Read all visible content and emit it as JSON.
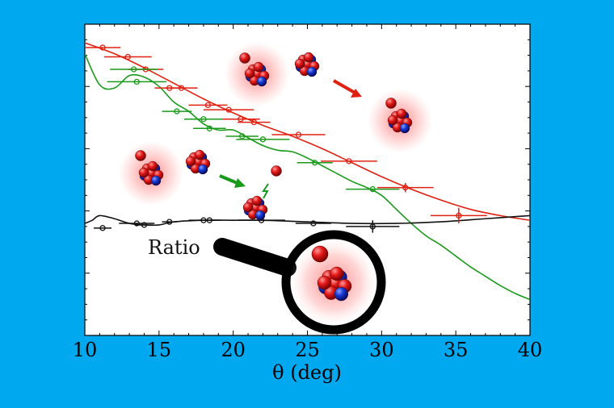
{
  "colors": {
    "background": "#00a8f0",
    "plot_bg": "#ffffff",
    "red_series": "#e02010",
    "green_series": "#1a9a1a",
    "ratio_series": "#111111",
    "proton": "#e02020",
    "neutron": "#1030c0"
  },
  "icons": [
    "nucleus-icon",
    "proton-icon",
    "magnifier-icon",
    "arrow-icon"
  ],
  "annotations": {
    "ratio_label": "Ratio"
  },
  "chart_data": {
    "type": "scatter",
    "title": "",
    "xlabel": "θ (deg)",
    "ylabel": "",
    "xlim": [
      10,
      40
    ],
    "ylim": [
      0,
      1
    ],
    "yscale": "linear (unlabeled ticks)",
    "grid": false,
    "legend": "none",
    "xticks": [
      "10",
      "15",
      "20",
      "25",
      "30",
      "35",
      "40"
    ],
    "series": [
      {
        "color": "red",
        "points": [
          {
            "x": 11.2,
            "y": 0.925,
            "xerr": 1.2
          },
          {
            "x": 12.9,
            "y": 0.895,
            "xerr": 1.6
          },
          {
            "x": 14.1,
            "y": 0.855,
            "xerr": 1.2
          },
          {
            "x": 15.7,
            "y": 0.795,
            "xerr": 1.0
          },
          {
            "x": 16.5,
            "y": 0.795,
            "xerr": 1.1
          },
          {
            "x": 18.3,
            "y": 0.74,
            "xerr": 1.3
          },
          {
            "x": 19.7,
            "y": 0.725,
            "xerr": 1.7
          },
          {
            "x": 20.5,
            "y": 0.695,
            "xerr": 1.3
          },
          {
            "x": 21.4,
            "y": 0.685,
            "xerr": 1.1
          },
          {
            "x": 24.4,
            "y": 0.645,
            "xerr": 1.8
          },
          {
            "x": 27.8,
            "y": 0.56,
            "xerr": 1.9
          },
          {
            "x": 31.6,
            "y": 0.475,
            "xerr": 1.9,
            "yerr": 0.015
          },
          {
            "x": 35.2,
            "y": 0.385,
            "xerr": 1.9,
            "yerr": 0.025
          }
        ],
        "curve": [
          [
            10,
            0.94
          ],
          [
            12,
            0.905
          ],
          [
            14,
            0.86
          ],
          [
            16,
            0.81
          ],
          [
            18,
            0.76
          ],
          [
            20,
            0.715
          ],
          [
            22,
            0.675
          ],
          [
            24,
            0.64
          ],
          [
            26,
            0.6
          ],
          [
            28,
            0.555
          ],
          [
            30,
            0.51
          ],
          [
            32,
            0.47
          ],
          [
            34,
            0.435
          ],
          [
            36,
            0.405
          ],
          [
            38,
            0.385
          ],
          [
            40,
            0.37
          ]
        ]
      },
      {
        "color": "green",
        "points": [
          {
            "x": 13.3,
            "y": 0.855,
            "xerr": 1.6
          },
          {
            "x": 13.5,
            "y": 0.815,
            "xerr": 2.0
          },
          {
            "x": 16.2,
            "y": 0.72,
            "xerr": 1.0
          },
          {
            "x": 18.0,
            "y": 0.695,
            "xerr": 1.3
          },
          {
            "x": 18.4,
            "y": 0.665,
            "xerr": 1.1
          },
          {
            "x": 20.6,
            "y": 0.64,
            "xerr": 1.1
          },
          {
            "x": 22.0,
            "y": 0.63,
            "xerr": 1.8
          },
          {
            "x": 25.5,
            "y": 0.555,
            "xerr": 1.2
          },
          {
            "x": 29.4,
            "y": 0.47,
            "xerr": 1.8
          }
        ],
        "curve": [
          [
            10,
            0.905
          ],
          [
            11,
            0.805
          ],
          [
            12,
            0.795
          ],
          [
            13,
            0.835
          ],
          [
            14,
            0.83
          ],
          [
            15,
            0.8
          ],
          [
            16,
            0.75
          ],
          [
            17,
            0.72
          ],
          [
            18,
            0.68
          ],
          [
            19,
            0.66
          ],
          [
            20,
            0.66
          ],
          [
            21,
            0.635
          ],
          [
            22,
            0.61
          ],
          [
            23,
            0.595
          ],
          [
            24,
            0.59
          ],
          [
            25,
            0.57
          ],
          [
            26,
            0.545
          ],
          [
            27,
            0.52
          ],
          [
            28,
            0.495
          ],
          [
            29,
            0.475
          ],
          [
            30,
            0.45
          ],
          [
            31,
            0.405
          ],
          [
            32,
            0.36
          ],
          [
            33,
            0.32
          ],
          [
            34,
            0.29
          ],
          [
            35,
            0.255
          ],
          [
            36,
            0.22
          ],
          [
            37,
            0.19
          ],
          [
            38,
            0.16
          ],
          [
            39,
            0.135
          ],
          [
            40,
            0.115
          ]
        ]
      },
      {
        "color": "black",
        "name": "Ratio",
        "points": [
          {
            "x": 11.2,
            "y": 0.345,
            "xerr": 0.6
          },
          {
            "x": 13.5,
            "y": 0.36,
            "xerr": 1.2
          },
          {
            "x": 14.0,
            "y": 0.355,
            "xerr": 0.6
          },
          {
            "x": 15.7,
            "y": 0.365,
            "xerr": 0.5
          },
          {
            "x": 18.0,
            "y": 0.37,
            "xerr": 1.0
          },
          {
            "x": 18.4,
            "y": 0.37,
            "xerr": 0.8
          },
          {
            "x": 21.9,
            "y": 0.37,
            "xerr": 1.6
          },
          {
            "x": 25.4,
            "y": 0.36,
            "xerr": 1.2
          },
          {
            "x": 29.4,
            "y": 0.35,
            "xerr": 1.8,
            "yerr": 0.02
          }
        ],
        "curve": [
          [
            10,
            0.36
          ],
          [
            10.5,
            0.37
          ],
          [
            11,
            0.385
          ],
          [
            12,
            0.375
          ],
          [
            13,
            0.36
          ],
          [
            14,
            0.355
          ],
          [
            15,
            0.355
          ],
          [
            16,
            0.365
          ],
          [
            18,
            0.37
          ],
          [
            20,
            0.37
          ],
          [
            22,
            0.37
          ],
          [
            25,
            0.365
          ],
          [
            28,
            0.36
          ],
          [
            31,
            0.36
          ],
          [
            34,
            0.365
          ],
          [
            37,
            0.375
          ],
          [
            40,
            0.385
          ]
        ]
      }
    ]
  }
}
